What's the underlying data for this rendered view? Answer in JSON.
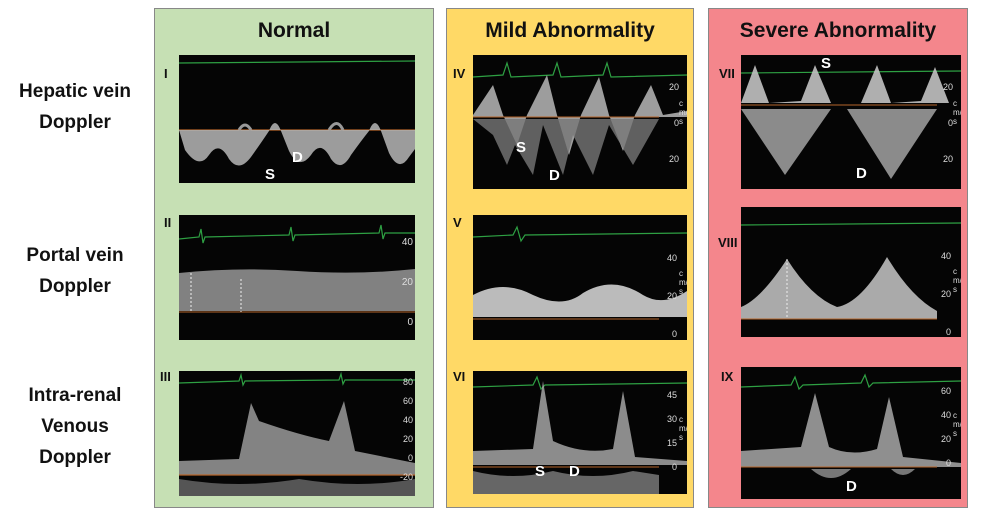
{
  "row_labels": [
    [
      "Hepatic vein",
      "Doppler"
    ],
    [
      "Portal vein",
      "Doppler"
    ],
    [
      "Intra-renal",
      "Venous",
      "Doppler"
    ]
  ],
  "panels": [
    {
      "title": "Normal",
      "color": "#c6e0b4"
    },
    {
      "title": "Mild Abnormality",
      "color": "#ffd966"
    },
    {
      "title": "Severe Abnormality",
      "color": "#f4868c"
    }
  ],
  "cells": [
    {
      "numeral": "I",
      "labels": [
        "S",
        "D"
      ],
      "scale": []
    },
    {
      "numeral": "II",
      "labels": [],
      "scale": [
        "40",
        "20",
        "0"
      ]
    },
    {
      "numeral": "III",
      "labels": [],
      "scale": [
        "80",
        "60",
        "40",
        "20",
        "0",
        "-20"
      ]
    },
    {
      "numeral": "IV",
      "labels": [
        "S",
        "D"
      ],
      "scale": [
        "20",
        "0",
        "20"
      ],
      "unit": "cm/s"
    },
    {
      "numeral": "V",
      "labels": [],
      "scale": [
        "40",
        "20",
        "0"
      ],
      "unit": "cm/s"
    },
    {
      "numeral": "VI",
      "labels": [
        "S",
        "D"
      ],
      "scale": [
        "45",
        "30",
        "15",
        "0"
      ],
      "unit": "cm/s"
    },
    {
      "numeral": "VII",
      "labels": [
        "S",
        "D"
      ],
      "scale": [
        "20",
        "0",
        "20"
      ],
      "unit": "cm/s"
    },
    {
      "numeral": "VIII",
      "labels": [],
      "scale": [
        "40",
        "20",
        "0"
      ],
      "unit": "cm/s"
    },
    {
      "numeral": "IX",
      "labels": [
        "D"
      ],
      "scale": [
        "60",
        "40",
        "20",
        "0"
      ],
      "unit": "cm/s"
    }
  ]
}
